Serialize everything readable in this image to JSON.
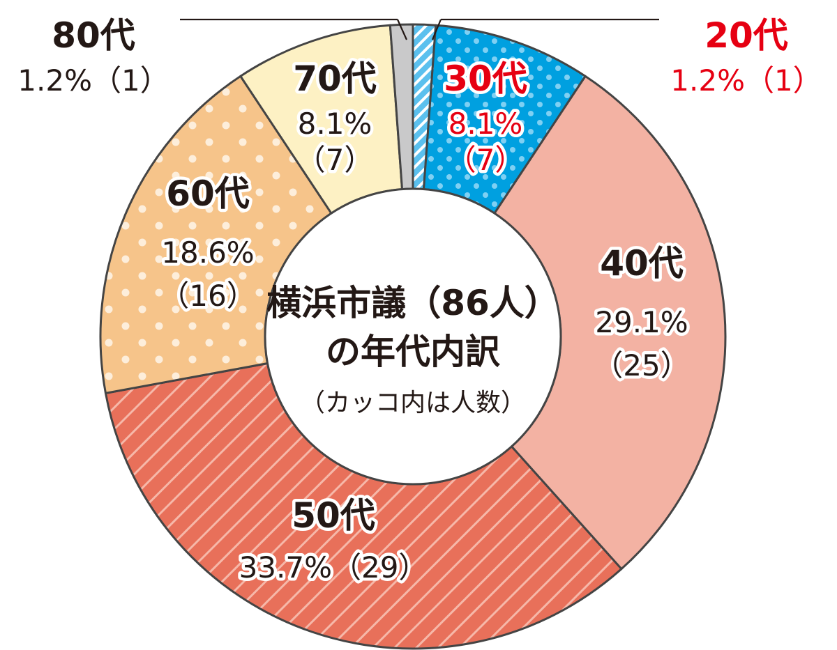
{
  "chart_data": {
    "type": "pie",
    "title_lines": [
      "横浜市議（86人）",
      "の年代内訳"
    ],
    "subtitle": "（カッコ内は人数）",
    "slices": [
      {
        "label": "20代",
        "percent": "1.2%",
        "count": "（1）",
        "value": 1,
        "color": "#5bc0ee"
      },
      {
        "label": "30代",
        "percent": "8.1%",
        "count": "（7）",
        "value": 7,
        "color": "#00a0e0"
      },
      {
        "label": "40代",
        "percent": "29.1%",
        "count": "（25）",
        "value": 25,
        "color": "#f3b2a3"
      },
      {
        "label": "50代",
        "percent": "33.7%",
        "count": "（29）",
        "value": 29,
        "color": "#e8705a"
      },
      {
        "label": "60代",
        "percent": "18.6%",
        "count": "（16）",
        "value": 16,
        "color": "#f6c48a"
      },
      {
        "label": "70代",
        "percent": "8.1%",
        "count": "（7）",
        "value": 7,
        "color": "#fdf1c4"
      },
      {
        "label": "80代",
        "percent": "1.2%",
        "count": "（1）",
        "value": 1,
        "color": "#c9c9ca"
      }
    ],
    "label_colors": {
      "highlight": "#e60012",
      "normal": "#231815"
    }
  }
}
